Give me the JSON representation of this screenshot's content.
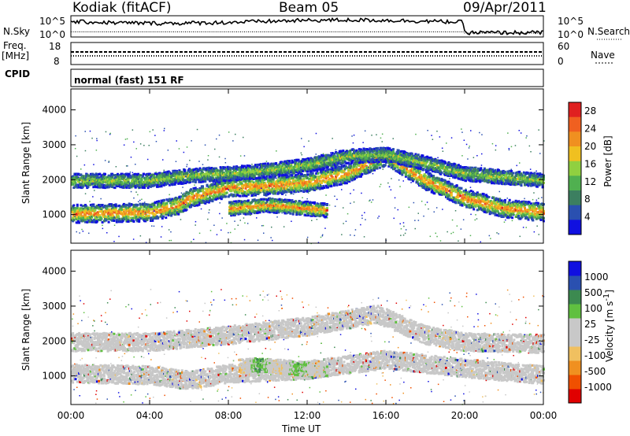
{
  "header": {
    "station": "Kodiak (fitACF)",
    "beam": "Beam 05",
    "date": "09/Apr/2011"
  },
  "sidebar_labels": {
    "nsky": "N.Sky",
    "freq": "Freq.",
    "mhz": "[MHz]",
    "cpid": "CPID",
    "nsearch": "N.Search",
    "nave": "Nave"
  },
  "noise_panel": {
    "left_ticks": [
      "10^5",
      "10^0"
    ],
    "right_ticks": [
      "10^5",
      "10^0"
    ]
  },
  "freq_panel": {
    "left_ticks": [
      "18",
      "8"
    ],
    "right_ticks": [
      "60",
      "0"
    ]
  },
  "cpid_text": "normal (fast) 151 RF",
  "colors": {
    "power_scale": [
      "#1010e0",
      "#2a50b0",
      "#3c7f60",
      "#50b050",
      "#90d040",
      "#f0c020",
      "#f09020",
      "#f06020",
      "#e02020"
    ],
    "velocity_scale": [
      "#e00000",
      "#f05000",
      "#f09020",
      "#f0c060",
      "#c8c8c8",
      "#c8c8c8",
      "#60c040",
      "#3c8a50",
      "#2a50b0",
      "#1010e0"
    ],
    "ground_scatter": "#c8c8c8"
  },
  "chart_data": [
    {
      "type": "heatmap",
      "title": "Power",
      "xlabel": "",
      "ylabel": "Slant Range [km]",
      "x_ticks": [
        "00:00",
        "04:00",
        "08:00",
        "12:00",
        "16:00",
        "20:00",
        "00:00"
      ],
      "x_range_hours": [
        0,
        24
      ],
      "y_ticks": [
        1000,
        2000,
        3000,
        4000
      ],
      "ylim": [
        180,
        4600
      ],
      "colorbar": {
        "label": "Power [dB]",
        "ticks": [
          4,
          8,
          12,
          16,
          20,
          24,
          28
        ],
        "range": [
          0,
          30
        ]
      },
      "bands": [
        {
          "name": "main",
          "hours": [
            0,
            4,
            5.5,
            6,
            7,
            8,
            10,
            12,
            14,
            15.5,
            16,
            18,
            20,
            22,
            24
          ],
          "range_km": [
            1050,
            1100,
            1300,
            1500,
            1650,
            1800,
            1850,
            1950,
            2200,
            2600,
            2700,
            2000,
            1500,
            1200,
            1100
          ],
          "power_db": 25
        },
        {
          "name": "upper",
          "hours": [
            0,
            4,
            6,
            8,
            10,
            12,
            14,
            16,
            18,
            20,
            24
          ],
          "range_km": [
            2000,
            2000,
            2150,
            2200,
            2300,
            2450,
            2700,
            2750,
            2500,
            2200,
            2000
          ],
          "power_db": 15
        },
        {
          "name": "patch",
          "hours": [
            8,
            9,
            10,
            11,
            12,
            13
          ],
          "range_km": [
            1200,
            1250,
            1300,
            1250,
            1200,
            1150
          ],
          "power_db": 25
        }
      ]
    },
    {
      "type": "heatmap",
      "title": "Velocity",
      "xlabel": "Time UT",
      "ylabel": "Slant Range [km]",
      "x_ticks": [
        "00:00",
        "04:00",
        "08:00",
        "12:00",
        "16:00",
        "20:00",
        "00:00"
      ],
      "x_range_hours": [
        0,
        24
      ],
      "y_ticks": [
        1000,
        2000,
        3000,
        4000
      ],
      "ylim": [
        180,
        4600
      ],
      "colorbar": {
        "label": "Velocity [m s^-1]",
        "ticks": [
          1000,
          500,
          100,
          25,
          -25,
          -100,
          -500,
          -1000
        ]
      },
      "bands": [
        {
          "name": "ground-scatter-low",
          "hours": [
            0,
            4,
            6,
            8,
            12,
            16,
            20,
            24
          ],
          "range_km": [
            1100,
            1050,
            900,
            1100,
            1200,
            1500,
            1250,
            1050
          ]
        },
        {
          "name": "ground-scatter-high",
          "hours": [
            0,
            4,
            8,
            12,
            15.5,
            18,
            20,
            24
          ],
          "range_km": [
            2000,
            2000,
            2200,
            2450,
            2800,
            2200,
            2000,
            1950
          ]
        },
        {
          "name": "ionospheric-patch",
          "hours": [
            8.5,
            9.5,
            10.5,
            11.5,
            12.5,
            13
          ],
          "range_km": [
            1300,
            1350,
            1300,
            1250,
            1200,
            1200
          ],
          "velocity_ms": [
            -300,
            400,
            -200,
            300,
            -150,
            200
          ]
        }
      ]
    }
  ]
}
